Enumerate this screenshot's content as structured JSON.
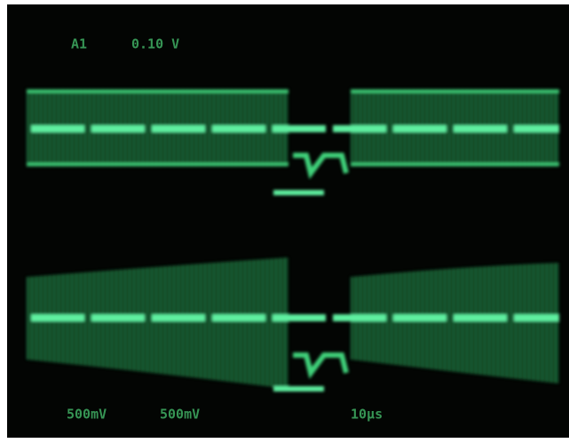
{
  "readouts": {
    "top": [
      "A1",
      "0.10 V"
    ],
    "bottom": [
      "500mV",
      "500mV",
      "10µs"
    ]
  }
}
